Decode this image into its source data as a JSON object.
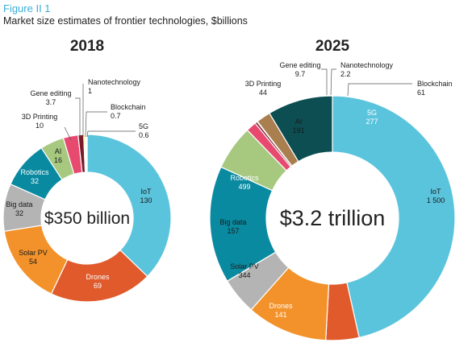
{
  "figure": {
    "label": "Figure II 1",
    "title": "Market size estimates of frontier technologies, $billions"
  },
  "chart_data": [
    {
      "type": "pie",
      "title": "2018",
      "center_label": "$350 billion",
      "slices": [
        {
          "name": "IoT",
          "value_label": "130",
          "value": 130,
          "color": "#5bc4dd"
        },
        {
          "name": "Drones",
          "value_label": "69",
          "value": 69,
          "color": "#e05a2b"
        },
        {
          "name": "Solar PV",
          "value_label": "54",
          "value": 54,
          "color": "#f3922a"
        },
        {
          "name": "Big data",
          "value_label": "32",
          "value": 32,
          "color": "#b4b4b4"
        },
        {
          "name": "Robotics",
          "value_label": "32",
          "value": 32,
          "color": "#0a8aa0"
        },
        {
          "name": "AI",
          "value_label": "16",
          "value": 16,
          "color": "#a6c97f"
        },
        {
          "name": "3D Printing",
          "value_label": "10",
          "value": 10,
          "color": "#e84a6f"
        },
        {
          "name": "Gene editing",
          "value_label": "3.7",
          "value": 3.7,
          "color": "#7b1b2a"
        },
        {
          "name": "Nanotechnology",
          "value_label": "1",
          "value": 1,
          "color": "#f5e04a"
        },
        {
          "name": "Blockchain",
          "value_label": "0.7",
          "value": 0.7,
          "color": "#a97f4f"
        },
        {
          "name": "5G",
          "value_label": "0.6",
          "value": 0.6,
          "color": "#0d4e52"
        }
      ]
    },
    {
      "type": "pie",
      "title": "2025",
      "center_label": "$3.2 trillion",
      "slices": [
        {
          "name": "IoT",
          "value_label": "1 500",
          "value": 1500,
          "color": "#5bc4dd"
        },
        {
          "name": "Drones",
          "value_label": "141",
          "value": 141,
          "color": "#e05a2b"
        },
        {
          "name": "Solar PV",
          "value_label": "344",
          "value": 344,
          "color": "#f3922a"
        },
        {
          "name": "Big data",
          "value_label": "157",
          "value": 157,
          "color": "#b4b4b4"
        },
        {
          "name": "Robotics",
          "value_label": "499",
          "value": 499,
          "color": "#0a8aa0"
        },
        {
          "name": "AI",
          "value_label": "191",
          "value": 191,
          "color": "#a6c97f"
        },
        {
          "name": "3D Printing",
          "value_label": "44",
          "value": 44,
          "color": "#e84a6f"
        },
        {
          "name": "Gene editing",
          "value_label": "9.7",
          "value": 9.7,
          "color": "#7b1b2a"
        },
        {
          "name": "Nanotechnology",
          "value_label": "2.2",
          "value": 2.2,
          "color": "#f5e04a"
        },
        {
          "name": "Blockchain",
          "value_label": "61",
          "value": 61,
          "color": "#a97f4f"
        },
        {
          "name": "5G",
          "value_label": "277",
          "value": 277,
          "color": "#0d4e52"
        }
      ]
    }
  ]
}
